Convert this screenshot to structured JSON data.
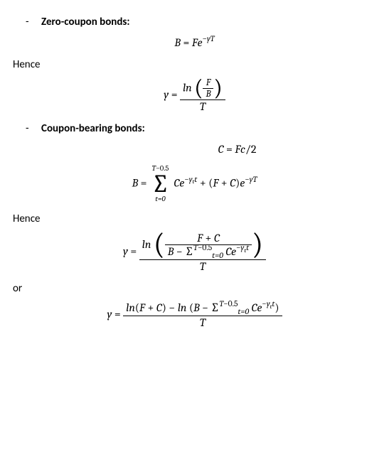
{
  "section1": {
    "bullet_dash": "-",
    "heading": "Zero-coupon bonds:",
    "eq1": {
      "lhs": "B",
      "eq_sign": " = ",
      "F": "F",
      "e": "e",
      "exp_minus": "−",
      "exp_y": "y",
      "exp_T": "T"
    },
    "hence": "Hence",
    "eq2": {
      "y": "y",
      "eq_sign": " = ",
      "ln": "ln",
      "F": "F",
      "B": "B",
      "T": "T"
    }
  },
  "section2": {
    "bullet_dash": "-",
    "heading": "Coupon-bearing bonds:",
    "eq3": {
      "C": "C",
      "eq_sign": " = ",
      "F": "F",
      "c": "c",
      "slash": "/",
      "two": "2"
    },
    "eq4": {
      "B": "B",
      "eq_sign": " = ",
      "sum_upper_T": "T",
      "sum_upper_minus": "−0.5",
      "sum_lower": "t=0",
      "C": "C",
      "e": "e",
      "exp1_minus": "−",
      "exp1_y": "y",
      "exp1_tsub": "t",
      "exp1_t": "t",
      "plus": " + ",
      "open": "(",
      "F": "F",
      "plus2": " + ",
      "C2": "C",
      "close": ")",
      "e2": "e",
      "exp2_minus": "−",
      "exp2_y": "y",
      "exp2_T": "T"
    },
    "hence": "Hence",
    "eq5": {
      "y": "y",
      "eq_sign": " = ",
      "ln": "ln",
      "num_F": "F",
      "num_plus": " + ",
      "num_C": "C",
      "den_B": "B",
      "den_minus": " − ",
      "den_sum_up_T": "T",
      "den_sum_up_rest": "−0.5",
      "den_sum_lo": "t=0",
      "den_C": " C",
      "den_e": "e",
      "den_exp_minus": "−",
      "den_exp_y": "y",
      "den_exp_tsub": "t",
      "den_exp_t": "t",
      "T": "T"
    },
    "or": "or",
    "eq6": {
      "y": "y",
      "eq_sign": " = ",
      "ln1": "ln",
      "open1": "(",
      "F": "F",
      "plus": " + ",
      "C": "C",
      "close1": ")",
      "minus": " − ",
      "ln2": "ln",
      "open2": " (",
      "B": "B",
      "minus2": " − ",
      "sum_up_T": "T",
      "sum_up_rest": "−0.5",
      "sum_lo": "t=0",
      "C2": " C",
      "e": "e",
      "exp_minus": "−",
      "exp_y": "y",
      "exp_tsub": "t",
      "exp_t": "t",
      "close2": ")",
      "T": "T"
    }
  }
}
